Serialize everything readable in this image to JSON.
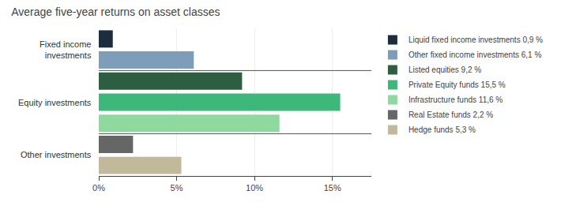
{
  "chart_data": {
    "type": "bar",
    "orientation": "horizontal",
    "title": "Average five-year returns on asset classes",
    "categories": [
      null,
      null,
      null,
      null,
      null,
      null,
      null
    ],
    "series": [
      {
        "name": "Liquid fixed income investments 0,9 %",
        "color": "#1c2d3e",
        "values": [
          0.9,
          null,
          null,
          null,
          null,
          null,
          null
        ]
      },
      {
        "name": "Other fixed income investments 6,1 %",
        "color": "#7d9db8",
        "values": [
          null,
          6.1,
          null,
          null,
          null,
          null,
          null
        ]
      },
      {
        "name": "Listed equities 9,2 %",
        "color": "#2e5e42",
        "values": [
          null,
          null,
          9.2,
          null,
          null,
          null,
          null
        ]
      },
      {
        "name": "Private Equity funds 15,5 %",
        "color": "#3db87a",
        "values": [
          null,
          null,
          null,
          15.5,
          null,
          null,
          null
        ]
      },
      {
        "name": "Infrastructure funds 11,6 %",
        "color": "#8dd9a0",
        "values": [
          null,
          null,
          null,
          null,
          11.6,
          null,
          null
        ]
      },
      {
        "name": "Real Estate funds 2,2 %",
        "color": "#666666",
        "values": [
          null,
          null,
          null,
          null,
          null,
          2.2,
          null
        ]
      },
      {
        "name": "Hedge funds 5,3 %",
        "color": "#c2b89a",
        "values": [
          null,
          null,
          null,
          null,
          null,
          null,
          5.3
        ]
      }
    ],
    "annotations": [
      {
        "text": "Fixed income\ninvestments",
        "series": [
          "Liquid fixed income investments 0,9 %",
          "Other fixed income investments 6,1 %"
        ]
      },
      {
        "text": "Equity investments",
        "series": [
          "Listed equities 9,2 %",
          "Private Equity funds 15,5 %",
          "Infrastructure funds 11,6 %"
        ]
      },
      {
        "text": "Other investments",
        "series": [
          "Real Estate funds 2,2 %",
          "Hedge funds 5,3 %"
        ]
      }
    ],
    "xlim": [
      0,
      17.5
    ],
    "xticks": [
      {
        "value": 0,
        "label": "0%"
      },
      {
        "value": 5,
        "label": "5%"
      },
      {
        "value": 10,
        "label": "10%"
      },
      {
        "value": 15,
        "label": "15%"
      }
    ],
    "grid": true,
    "legend": "right",
    "tick_labels": "x"
  }
}
